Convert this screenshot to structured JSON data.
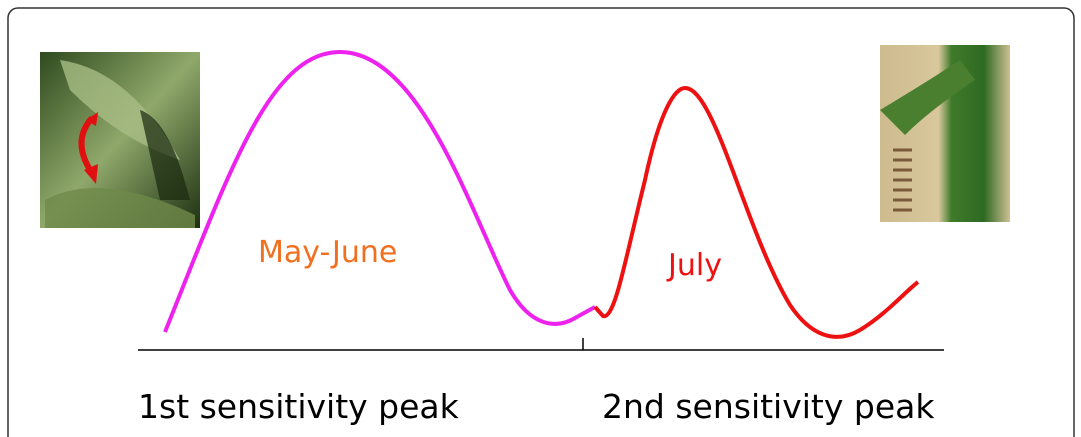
{
  "labels": {
    "first_period": "May-June",
    "second_period": "July"
  },
  "axis": {
    "left_label": "1st sensitivity peak",
    "right_label": "2nd sensitivity peak"
  }
}
